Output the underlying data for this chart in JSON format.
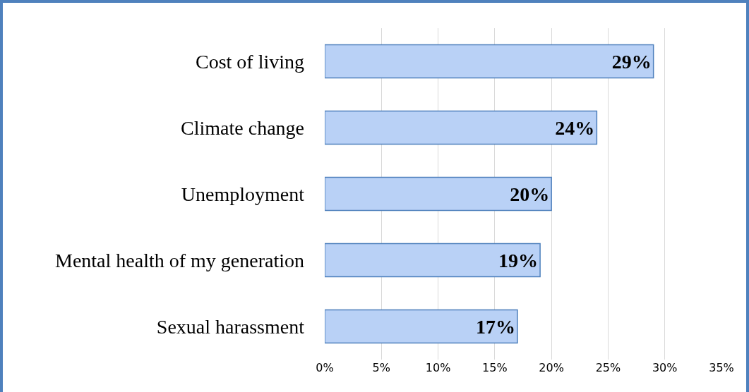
{
  "chart_data": {
    "type": "bar",
    "orientation": "horizontal",
    "categories": [
      "Cost of living",
      "Climate change",
      "Unemployment",
      "Mental health of my generation",
      "Sexual harassment"
    ],
    "values": [
      29,
      24,
      20,
      19,
      17
    ],
    "value_labels": [
      "29%",
      "24%",
      "20%",
      "19%",
      "17%"
    ],
    "color": "#b9d1f6",
    "xlim": [
      0,
      35
    ],
    "xticks": [
      {
        "value": 0,
        "label": "0%"
      },
      {
        "value": 5,
        "label": "5%"
      },
      {
        "value": 10,
        "label": "10%"
      },
      {
        "value": 15,
        "label": "15%"
      },
      {
        "value": 20,
        "label": "20%"
      },
      {
        "value": 25,
        "label": "25%"
      },
      {
        "value": 30,
        "label": "30%"
      },
      {
        "value": 35,
        "label": "35%"
      }
    ],
    "grid": "x"
  }
}
